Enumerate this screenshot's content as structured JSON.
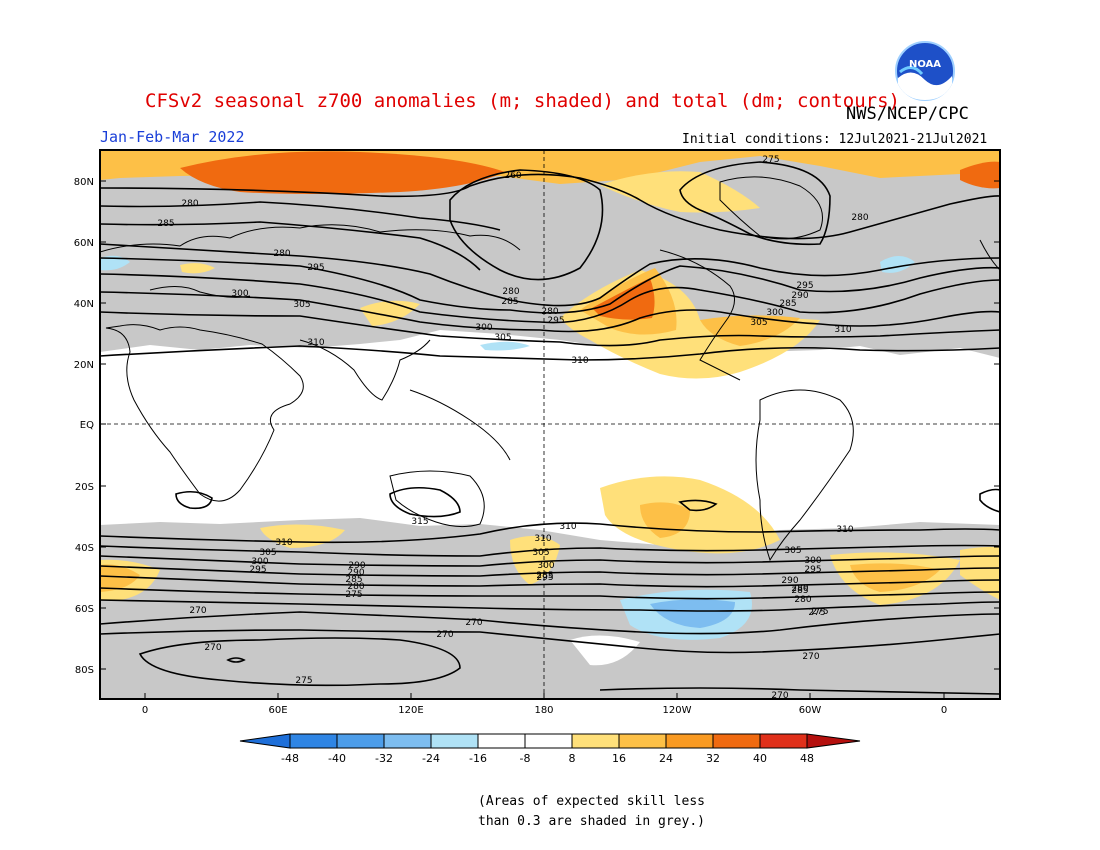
{
  "header": {
    "title": "CFSv2 seasonal z700 anomalies (m; shaded) and total (dm; contours)",
    "agency": "NWS/NCEP/CPC",
    "season": "Jan-Feb-Mar 2022",
    "initial_conditions": "Initial conditions: 12Jul2021-21Jul2021",
    "logo_text": "NOAA"
  },
  "map": {
    "lat_labels": [
      "80N",
      "60N",
      "40N",
      "20N",
      "EQ",
      "20S",
      "40S",
      "60S",
      "80S"
    ],
    "lon_labels": [
      "0",
      "60E",
      "120E",
      "180",
      "120W",
      "60W",
      "0"
    ],
    "contour_labels": [
      "260",
      "275",
      "280",
      "280",
      "285",
      "300",
      "280",
      "295",
      "280",
      "285",
      "280",
      "295",
      "300",
      "305",
      "305",
      "305",
      "310",
      "295",
      "290",
      "285",
      "300",
      "310",
      "310",
      "310",
      "310",
      "310",
      "315",
      "310",
      "305",
      "300",
      "295",
      "290",
      "285",
      "280",
      "275",
      "305",
      "300",
      "295",
      "290",
      "285",
      "280",
      "275",
      "305",
      "300",
      "295",
      "290",
      "285",
      "280",
      "275",
      "270",
      "270",
      "270",
      "270",
      "275",
      "270",
      "270"
    ]
  },
  "colorbar": {
    "labels": [
      "-48",
      "-40",
      "-32",
      "-24",
      "-16",
      "-8",
      "8",
      "16",
      "24",
      "32",
      "40",
      "48"
    ],
    "colors": [
      "#1e6fd9",
      "#2f85e4",
      "#4d9de9",
      "#7dbdf0",
      "#b0e2f6",
      "#ffffff",
      "#ffe07a",
      "#fdc047",
      "#f99a22",
      "#f06a10",
      "#e0301a",
      "#b5100e"
    ]
  },
  "footnote": {
    "line1": "(Areas of expected skill less",
    "line2": "than 0.3 are shaded in grey.)"
  },
  "colors": {
    "grey_skill": "#c8c8c8",
    "title_red": "#e00000",
    "season_blue": "#1a3fd8"
  }
}
